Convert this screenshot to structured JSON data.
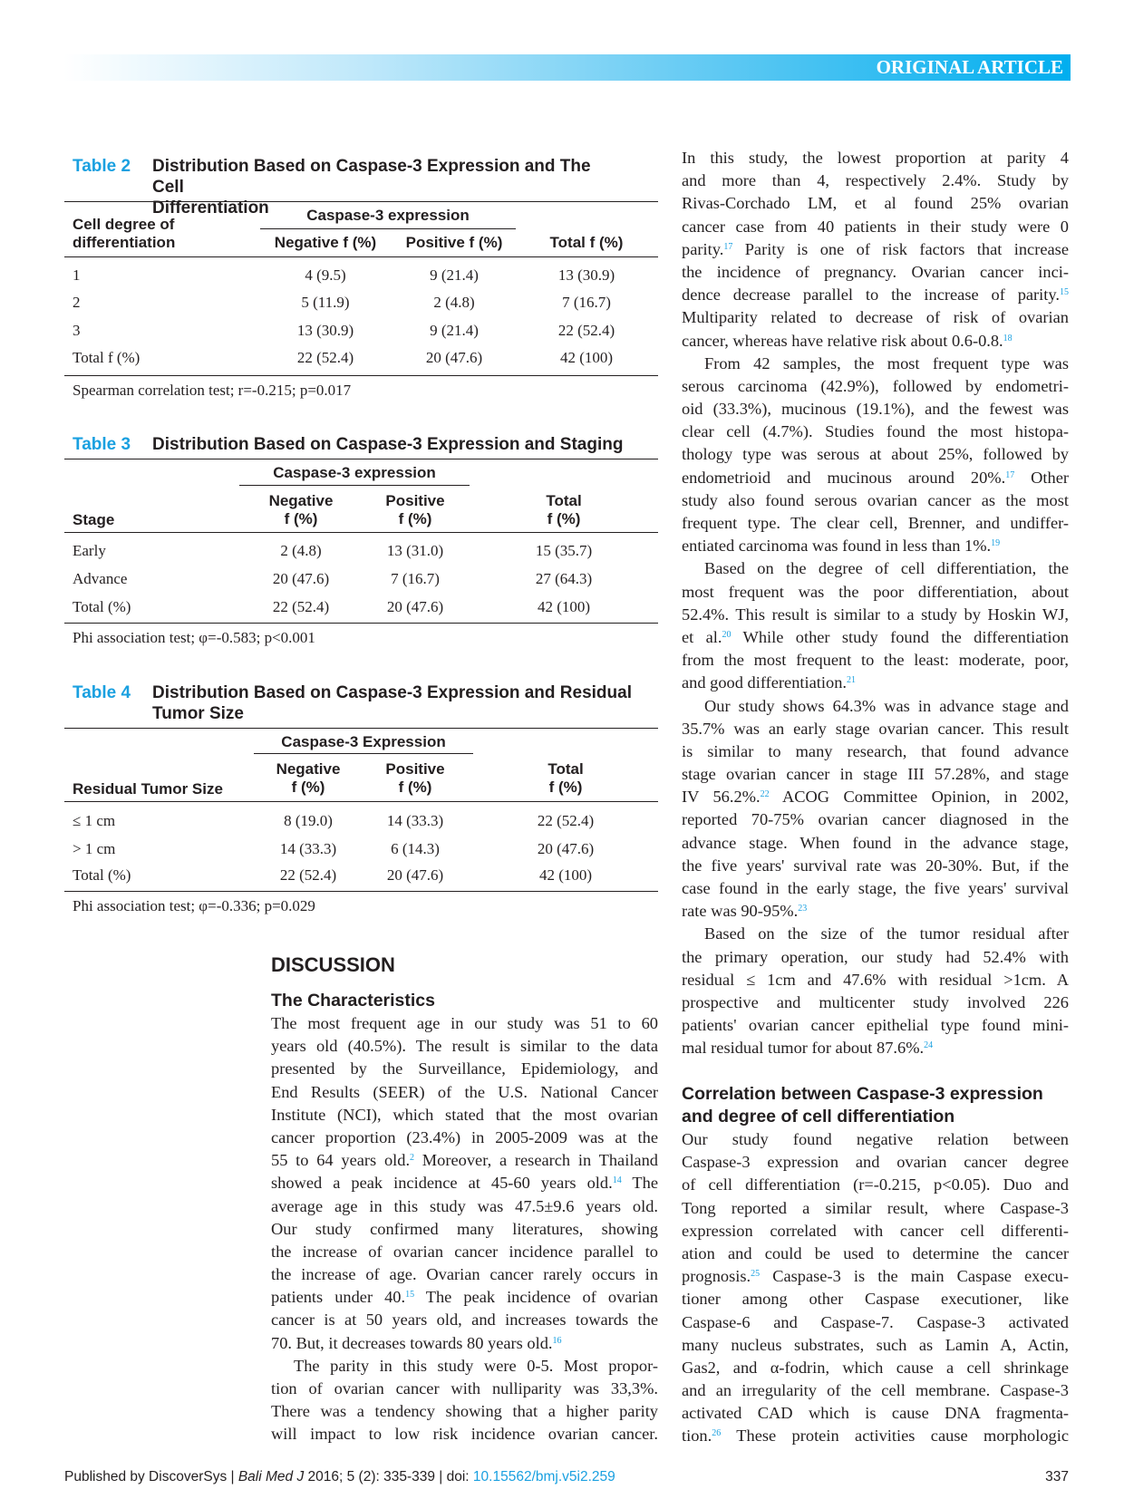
{
  "header": {
    "section_label": "ORIGINAL ARTICLE",
    "accent_color": "#00aeef"
  },
  "tables": [
    {
      "label": "Table 2",
      "title_lines": [
        "Distribution Based on Caspase-3 Expression and The Cell",
        "Differentiation"
      ],
      "row_header": [
        "Cell degree of",
        "differentiation"
      ],
      "group_header": "Caspase-3 expression",
      "columns": [
        "Negative f (%)",
        "Positive f (%)",
        "Total f (%)"
      ],
      "rows": [
        [
          "1",
          "4 (9.5)",
          "9 (21.4)",
          "13 (30.9)"
        ],
        [
          "2",
          "5 (11.9)",
          "2 (4.8)",
          "7 (16.7)"
        ],
        [
          "3",
          "13 (30.9)",
          "9 (21.4)",
          "22 (52.4)"
        ],
        [
          "Total f (%)",
          "22 (52.4)",
          "20 (47.6)",
          "42 (100)"
        ]
      ],
      "note": "Spearman correlation test; r=-0.215; p=0.017"
    },
    {
      "label": "Table 3",
      "title_lines": [
        "Distribution Based on Caspase-3 Expression and Staging"
      ],
      "row_header": [
        "Stage"
      ],
      "group_header": "Caspase-3 expression",
      "columns": [
        [
          "Negative",
          "f (%)"
        ],
        [
          "Positive",
          "f (%)"
        ],
        [
          "Total",
          "f (%)"
        ]
      ],
      "rows": [
        [
          "Early",
          "2 (4.8)",
          "13 (31.0)",
          "15 (35.7)"
        ],
        [
          "Advance",
          "20 (47.6)",
          "7 (16.7)",
          "27 (64.3)"
        ],
        [
          "Total (%)",
          "22 (52.4)",
          "20 (47.6)",
          "42 (100)"
        ]
      ],
      "note": "Phi association test; φ=-0.583; p<0.001"
    },
    {
      "label": "Table 4",
      "title_lines": [
        "Distribution Based on Caspase-3 Expression and Residual",
        "Tumor Size"
      ],
      "row_header": [
        "Residual Tumor Size"
      ],
      "group_header": "Caspase-3 Expression",
      "columns": [
        [
          "Negative",
          "f (%)"
        ],
        [
          "Positive",
          "f (%)"
        ],
        [
          "Total",
          "f (%)"
        ]
      ],
      "rows": [
        [
          "≤ 1 cm",
          "8 (19.0)",
          "14 (33.3)",
          "22 (52.4)"
        ],
        [
          "> 1 cm",
          "14 (33.3)",
          "6 (14.3)",
          "20 (47.6)"
        ],
        [
          "Total (%)",
          "22 (52.4)",
          "20 (47.6)",
          "42 (100)"
        ]
      ],
      "note": "Phi association test; φ=-0.336; p=0.029"
    }
  ],
  "discussion": {
    "heading": "DISCUSSION",
    "subheading": "The Characteristics",
    "lines": [
      [
        "The most frequent age in our study was 51 to 60"
      ],
      [
        "years old (40.5%). The result is similar to the data"
      ],
      [
        "presented by the Surveillance, Epidemiology, and"
      ],
      [
        "End Results (SEER) of the U.S. National Cancer"
      ],
      [
        "Institute (NCI), which stated that the most ovarian"
      ],
      [
        "cancer proportion (23.4%) in 2005-2009 was at the"
      ],
      [
        "55 to 64 years old.",
        {
          "sup": "2"
        },
        " Moreover, a research in Thailand"
      ],
      [
        "showed a peak incidence at 45-60 years old.",
        {
          "sup": "14"
        },
        " The"
      ],
      [
        "average age in this study was 47.5±9.6 years old."
      ],
      [
        "Our study confirmed many literatures, showing"
      ],
      [
        "the increase of ovarian cancer incidence parallel to"
      ],
      [
        "the increase of age. Ovarian cancer rarely occurs in"
      ],
      [
        "patients under 40.",
        {
          "sup": "15"
        },
        " The peak incidence of ovarian"
      ],
      [
        "cancer is at 50 years old, and increases towards the"
      ],
      [
        {
          "last": true
        },
        "70. But, it decreases towards 80 years old.",
        {
          "sup": "16"
        }
      ],
      [
        {
          "ind": true
        },
        "The parity in this study were 0-5. Most propor-"
      ],
      [
        "tion of ovarian cancer with nulliparity was 33,3%."
      ],
      [
        "There was a tendency showing that a higher parity"
      ],
      [
        "will impact to low risk incidence ovarian cancer."
      ]
    ]
  },
  "right_column": {
    "lines": [
      [
        "In this study, the lowest proportion at parity 4"
      ],
      [
        "and more than 4, respectively 2.4%. Study by"
      ],
      [
        "Rivas-Corchado LM, et al found 25% ovarian"
      ],
      [
        "cancer case from 40 patients in their study were 0"
      ],
      [
        "parity.",
        {
          "sup": "17"
        },
        " Parity is one of risk factors that increase"
      ],
      [
        "the incidence of pregnancy. Ovarian cancer inci-"
      ],
      [
        "dence decrease parallel to the increase of parity.",
        {
          "sup": "15"
        }
      ],
      [
        "Multiparity related to decrease of risk of ovarian"
      ],
      [
        {
          "last": true
        },
        "cancer, whereas have relative risk about 0.6-0.8.",
        {
          "sup": "18"
        }
      ],
      [
        {
          "ind": true
        },
        "From 42 samples, the most frequent type was"
      ],
      [
        "serous carcinoma (42.9%), followed by endometri-"
      ],
      [
        "oid (33.3%), mucinous (19.1%), and the fewest was"
      ],
      [
        "clear cell (4.7%). Studies found the most histopa-"
      ],
      [
        "thology type was serous at about 25%, followed by"
      ],
      [
        "endometrioid and mucinous around 20%.",
        {
          "sup": "17"
        },
        " Other"
      ],
      [
        "study also found serous ovarian cancer as the most"
      ],
      [
        "frequent type. The clear cell, Brenner, and undiffer-"
      ],
      [
        {
          "last": true
        },
        "entiated carcinoma was found in less than 1%.",
        {
          "sup": "19"
        }
      ],
      [
        {
          "ind": true
        },
        "Based on the degree of cell differentiation, the"
      ],
      [
        "most frequent was the poor differentiation, about"
      ],
      [
        "52.4%. This result is similar to a study by Hoskin WJ,"
      ],
      [
        "et al.",
        {
          "sup": "20"
        },
        " While other study found the differentiation"
      ],
      [
        "from the most frequent to the least: moderate, poor,"
      ],
      [
        {
          "last": true
        },
        "and good differentiation.",
        {
          "sup": "21"
        }
      ],
      [
        {
          "ind": true
        },
        "Our study shows 64.3% was in advance stage and"
      ],
      [
        "35.7% was an early stage ovarian cancer. This result"
      ],
      [
        "is similar to many research, that found advance"
      ],
      [
        "stage ovarian cancer in stage III 57.28%, and stage"
      ],
      [
        "IV 56.2%.",
        {
          "sup": "22"
        },
        " ACOG Committee Opinion, in 2002,"
      ],
      [
        "reported 70-75% ovarian cancer diagnosed in the"
      ],
      [
        "advance stage. When found in the advance stage,"
      ],
      [
        "the five years' survival rate was 20-30%. But, if the"
      ],
      [
        "case found in the early stage, the five years' survival"
      ],
      [
        {
          "last": true
        },
        "rate was 90-95%.",
        {
          "sup": "23"
        }
      ],
      [
        {
          "ind": true
        },
        "Based on the size of the tumor residual after"
      ],
      [
        "the primary operation, our study had 52.4% with"
      ],
      [
        "residual ≤ 1cm and 47.6% with residual >1cm. A"
      ],
      [
        "prospective and multicenter study involved 226"
      ],
      [
        "patients' ovarian cancer epithelial type found mini-"
      ],
      [
        {
          "last": true
        },
        "mal residual tumor for about 87.6%.",
        {
          "sup": "24"
        }
      ]
    ],
    "heading_lines": [
      "Correlation between Caspase-3 expression",
      "and degree of cell differentiation"
    ],
    "lines2": [
      [
        "Our study found negative relation between"
      ],
      [
        "Caspase-3 expression and ovarian cancer degree"
      ],
      [
        "of cell differentiation (r=-0.215, p<0.05). Duo and"
      ],
      [
        "Tong reported a similar result, where Caspase-3"
      ],
      [
        "expression correlated with cancer cell differenti-"
      ],
      [
        "ation and could be used to determine the cancer"
      ],
      [
        "prognosis.",
        {
          "sup": "25"
        },
        " Caspase-3 is the main Caspase execu-"
      ],
      [
        "tioner among other Caspase executioner, like"
      ],
      [
        "Caspase-6 and Caspase-7. Caspase-3 activated"
      ],
      [
        "many nucleus substrates, such as Lamin A, Actin,"
      ],
      [
        "Gas2, and α-fodrin, which cause a cell shrinkage"
      ],
      [
        "and an irregularity of the cell membrane. Caspase-3"
      ],
      [
        "activated CAD which is cause DNA fragmenta-"
      ],
      [
        "tion.",
        {
          "sup": "26"
        },
        " These protein activities cause morphologic"
      ]
    ]
  },
  "footer": {
    "publisher": "Published by DiscoverSys | ",
    "journal": "Bali Med J",
    "citation": " 2016; 5 (2): 335-339 | doi: ",
    "doi": "10.15562/bmj.v5i2.259",
    "page_number": "337"
  }
}
